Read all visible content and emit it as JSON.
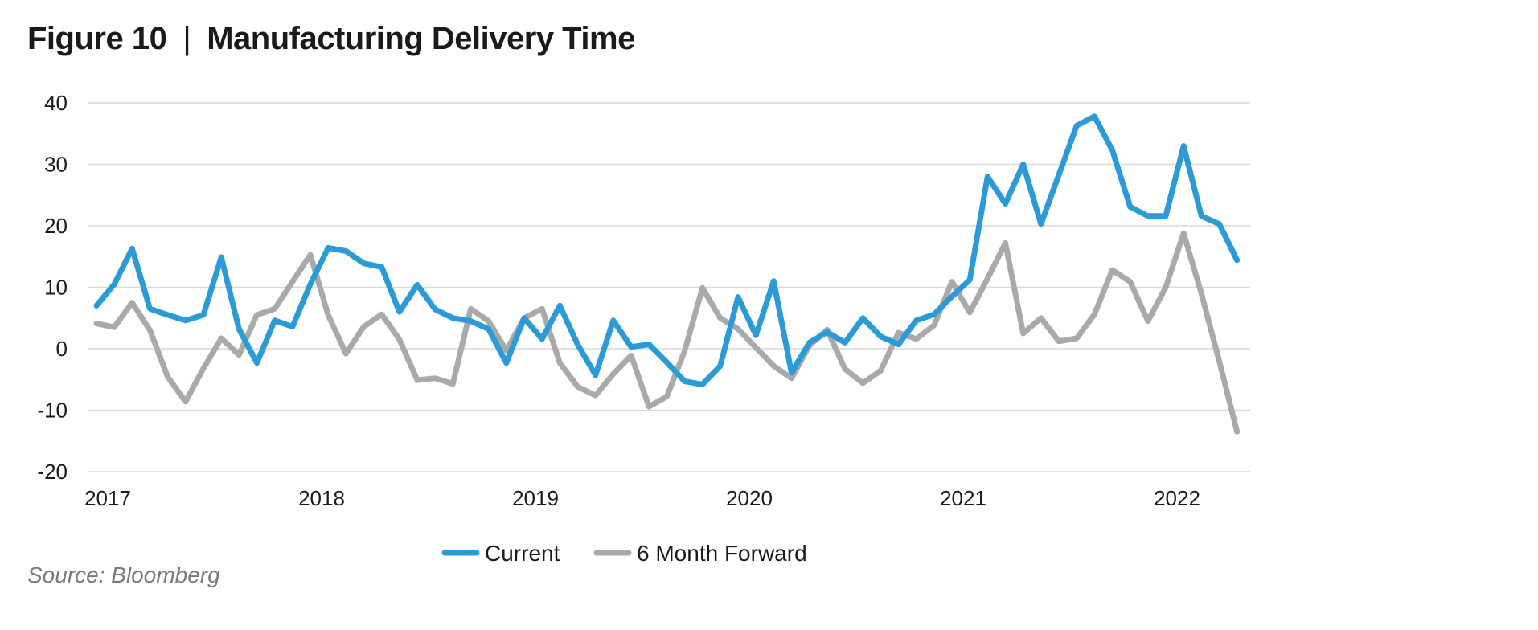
{
  "header": {
    "figure": "Figure 10",
    "divider": "|",
    "title": "Manufacturing Delivery Time"
  },
  "source": "Source: Bloomberg",
  "colors": {
    "current": "#2b9bd8",
    "forward": "#a9a9a9",
    "grid": "#d9d9d9"
  },
  "chart_data": {
    "type": "line",
    "title": "Manufacturing Delivery Time",
    "xlabel": "",
    "ylabel": "",
    "ylim": [
      -20,
      40
    ],
    "yticks": [
      40,
      30,
      20,
      10,
      0,
      -10,
      -20
    ],
    "ytick_labels": [
      "40",
      "30",
      "20",
      "10",
      "0",
      "-10",
      "-20"
    ],
    "xticks": [
      "2017",
      "2018",
      "2019",
      "2020",
      "2021",
      "2022"
    ],
    "x_start": "2017-01",
    "x_end": "2022-04",
    "grid": true,
    "legend": "bottom",
    "series": [
      {
        "name": "Current",
        "color": "#2b9bd8",
        "values": [
          7,
          10.5,
          16.3,
          6.5,
          5.5,
          4.6,
          5.5,
          14.9,
          3.2,
          -2.3,
          4.6,
          3.6,
          10.5,
          16.4,
          15.9,
          13.9,
          13.3,
          6.0,
          10.4,
          6.4,
          5.0,
          4.5,
          3.2,
          -2.3,
          5.0,
          1.6,
          7.0,
          0.7,
          -4.3,
          4.6,
          0.3,
          0.7,
          -2.2,
          -5.3,
          -5.8,
          -2.8,
          8.4,
          2.2,
          11.0,
          -3.9,
          1.0,
          2.7,
          1.0,
          5.0,
          2.0,
          0.7,
          4.6,
          5.6,
          8.5,
          11.2,
          28.0,
          23.6,
          30.0,
          20.3,
          28.3,
          36.3,
          37.8,
          32.3,
          23.1,
          21.6,
          21.6,
          33.0,
          21.6,
          20.3,
          14.4
        ]
      },
      {
        "name": "6 Month Forward",
        "color": "#a9a9a9",
        "values": [
          4.1,
          3.5,
          7.5,
          3.0,
          -4.6,
          -8.6,
          -3.2,
          1.7,
          -1.0,
          5.5,
          6.5,
          10.9,
          15.3,
          5.5,
          -0.8,
          3.6,
          5.6,
          1.5,
          -5.1,
          -4.8,
          -5.7,
          6.5,
          4.5,
          -0.3,
          5.0,
          6.5,
          -2.3,
          -6.2,
          -7.6,
          -4.1,
          -1.1,
          -9.4,
          -7.8,
          -0.4,
          9.9,
          5.0,
          3.2,
          0.2,
          -2.8,
          -4.8,
          0.5,
          3.1,
          -3.3,
          -5.6,
          -3.6,
          2.6,
          1.6,
          3.8,
          10.9,
          5.9,
          11.4,
          17.2,
          2.5,
          5.0,
          1.2,
          1.7,
          5.6,
          12.8,
          10.9,
          4.5,
          10.0,
          18.8,
          9.0,
          -2.0,
          -13.5
        ]
      }
    ]
  }
}
